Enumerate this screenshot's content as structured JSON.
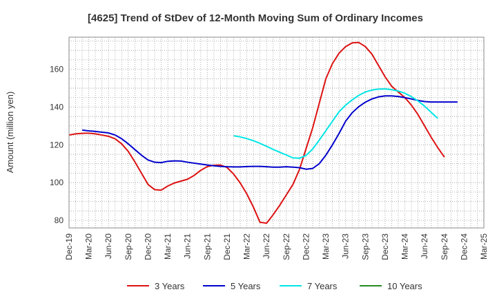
{
  "chart_data": {
    "type": "line",
    "title": "[4625]  Trend of StDev of 12-Month Moving Sum of Ordinary Incomes",
    "xlabel": "",
    "ylabel": "Amount (million yen)",
    "x_tick_labels": [
      "Dec-19",
      "Mar-20",
      "Jun-20",
      "Sep-20",
      "Dec-20",
      "Mar-21",
      "Jun-21",
      "Sep-21",
      "Dec-21",
      "Mar-22",
      "Jun-22",
      "Sep-22",
      "Dec-22",
      "Mar-23",
      "Jun-23",
      "Sep-23",
      "Dec-23",
      "Mar-24",
      "Jun-24",
      "Sep-24",
      "Dec-24",
      "Mar-25"
    ],
    "y_ticks": [
      80,
      100,
      120,
      140,
      160
    ],
    "ylim": [
      76,
      177
    ],
    "grid": true,
    "legend_position": "bottom",
    "series": [
      {
        "name": "3 Years",
        "color": "#dd1111",
        "start_index": 0,
        "values": [
          125.2,
          125.8,
          126.1,
          126.2,
          125.8,
          125.2,
          124.5,
          123.2,
          120.5,
          116.5,
          111,
          105,
          99,
          96.3,
          96,
          98.2,
          99.8,
          100.8,
          101.8,
          103.8,
          106.5,
          108.5,
          109.2,
          109.3,
          108,
          104.5,
          99.8,
          94,
          87,
          79,
          78.5,
          83,
          88,
          93.5,
          99,
          107,
          118,
          129,
          142,
          155,
          163,
          168.5,
          172,
          174,
          174.2,
          172,
          168,
          162,
          156,
          151,
          148,
          145,
          141,
          136,
          130,
          124,
          118.5,
          113.5
        ]
      },
      {
        "name": "5 Years",
        "color": "#0000cc",
        "start_index": 2,
        "values": [
          127.8,
          127.4,
          127.1,
          126.7,
          126.3,
          125.2,
          123.2,
          120.5,
          117.5,
          114.5,
          112,
          110.8,
          110.6,
          111.3,
          111.5,
          111.4,
          110.8,
          110.3,
          109.8,
          109.3,
          108.9,
          108.6,
          108.4,
          108.3,
          108.3,
          108.5,
          108.6,
          108.6,
          108.4,
          108.2,
          108.2,
          108.4,
          108.2,
          107.9,
          107.1,
          107.5,
          110,
          114.5,
          120,
          126,
          132.5,
          137,
          140.2,
          142.6,
          144.3,
          145.4,
          145.9,
          145.9,
          145.6,
          145,
          144.3,
          143.5,
          142.9,
          142.7,
          142.7,
          142.7,
          142.7,
          142.7
        ]
      },
      {
        "name": "7 Years",
        "color": "#00e5e5",
        "start_index": 25,
        "values": [
          124.8,
          124.2,
          123.3,
          122.2,
          120.8,
          119.2,
          117.6,
          116.1,
          114.6,
          113.1,
          112.9,
          114.4,
          117.8,
          122.5,
          127.5,
          132.5,
          137.5,
          141,
          143.8,
          146.2,
          148,
          149,
          149.5,
          149.6,
          149.2,
          148.5,
          147.3,
          145.5,
          143.2,
          140.5,
          137.2,
          134
        ]
      },
      {
        "name": "10 Years",
        "color": "#228b22",
        "start_index": 0,
        "values": []
      }
    ]
  }
}
